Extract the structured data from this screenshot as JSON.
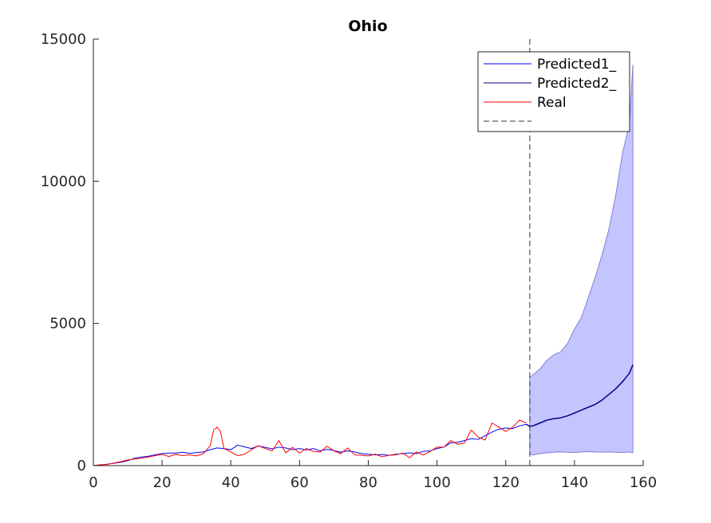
{
  "chart_data": {
    "type": "line",
    "title": "Ohio",
    "xlabel": "",
    "ylabel": "",
    "xlim": [
      0,
      160
    ],
    "ylim": [
      0,
      15000
    ],
    "xticks": [
      0,
      20,
      40,
      60,
      80,
      100,
      120,
      140,
      160
    ],
    "yticks": [
      0,
      5000,
      10000,
      15000
    ],
    "grid": false,
    "legend_position": "top-right",
    "vline_x": 127,
    "colors": {
      "predicted1": "#0000ff",
      "predicted2": "#00008b",
      "real": "#ff0000",
      "band_fill": "#c4c4ff",
      "band_edge": "#8080d8",
      "vline": "#333333"
    },
    "legend": [
      {
        "label": "Predicted1_",
        "style": "predicted1"
      },
      {
        "label": "Predicted2_",
        "style": "predicted2"
      },
      {
        "label": "Real",
        "style": "real"
      },
      {
        "label": "",
        "style": "vline"
      }
    ],
    "series": [
      {
        "name": "Predicted1_",
        "x": [
          0,
          2,
          4,
          6,
          8,
          10,
          12,
          14,
          16,
          18,
          20,
          22,
          24,
          26,
          28,
          30,
          32,
          34,
          36,
          38,
          40,
          42,
          44,
          46,
          48,
          50,
          52,
          54,
          56,
          58,
          60,
          62,
          64,
          66,
          68,
          70,
          72,
          74,
          76,
          78,
          80,
          82,
          84,
          86,
          88,
          90,
          92,
          94,
          96,
          98,
          100,
          102,
          104,
          106,
          108,
          110,
          112,
          114,
          116,
          118,
          120,
          122,
          124,
          126
        ],
        "y": [
          0,
          20,
          50,
          80,
          120,
          170,
          260,
          300,
          330,
          380,
          420,
          440,
          440,
          470,
          430,
          460,
          480,
          560,
          620,
          600,
          560,
          720,
          660,
          600,
          690,
          640,
          590,
          650,
          620,
          560,
          600,
          550,
          600,
          520,
          570,
          530,
          470,
          520,
          480,
          420,
          400,
          380,
          390,
          360,
          400,
          420,
          450,
          420,
          500,
          520,
          600,
          650,
          800,
          820,
          880,
          950,
          920,
          1050,
          1180,
          1280,
          1320,
          1300,
          1400,
          1450
        ]
      },
      {
        "name": "Predicted2_",
        "x": [
          126,
          127,
          128,
          130,
          132,
          134,
          136,
          138,
          140,
          142,
          144,
          146,
          148,
          150,
          152,
          154,
          156,
          157
        ],
        "y": [
          1450,
          1380,
          1400,
          1500,
          1600,
          1650,
          1680,
          1750,
          1850,
          1950,
          2050,
          2150,
          2300,
          2500,
          2700,
          2950,
          3250,
          3550
        ]
      },
      {
        "name": "Real",
        "x": [
          0,
          2,
          4,
          6,
          8,
          10,
          12,
          14,
          16,
          18,
          20,
          22,
          24,
          26,
          28,
          30,
          32,
          34,
          35,
          36,
          37,
          38,
          40,
          42,
          44,
          46,
          48,
          50,
          52,
          54,
          56,
          58,
          60,
          62,
          64,
          66,
          68,
          70,
          72,
          74,
          76,
          78,
          80,
          82,
          84,
          86,
          88,
          90,
          92,
          94,
          96,
          98,
          100,
          102,
          104,
          106,
          108,
          110,
          112,
          114,
          116,
          118,
          120,
          122,
          124,
          126
        ],
        "y": [
          0,
          30,
          40,
          90,
          140,
          200,
          230,
          260,
          300,
          350,
          400,
          320,
          400,
          350,
          380,
          340,
          420,
          700,
          1250,
          1350,
          1200,
          600,
          480,
          350,
          400,
          560,
          700,
          600,
          520,
          880,
          450,
          640,
          440,
          600,
          500,
          480,
          680,
          520,
          420,
          620,
          380,
          360,
          340,
          400,
          310,
          360,
          380,
          440,
          280,
          480,
          370,
          500,
          650,
          650,
          880,
          750,
          800,
          1250,
          1000,
          900,
          1500,
          1350,
          1200,
          1350,
          1600,
          1500
        ]
      }
    ],
    "band": {
      "name": "",
      "x": [
        127,
        128,
        130,
        132,
        134,
        136,
        138,
        140,
        142,
        144,
        146,
        148,
        150,
        152,
        154,
        156,
        157
      ],
      "upper": [
        3100,
        3200,
        3400,
        3700,
        3900,
        4000,
        4300,
        4800,
        5200,
        5900,
        6600,
        7400,
        8300,
        9500,
        11000,
        12000,
        14100
      ],
      "lower": [
        400,
        380,
        420,
        450,
        470,
        480,
        470,
        460,
        480,
        490,
        480,
        470,
        480,
        470,
        460,
        480,
        450
      ]
    }
  }
}
